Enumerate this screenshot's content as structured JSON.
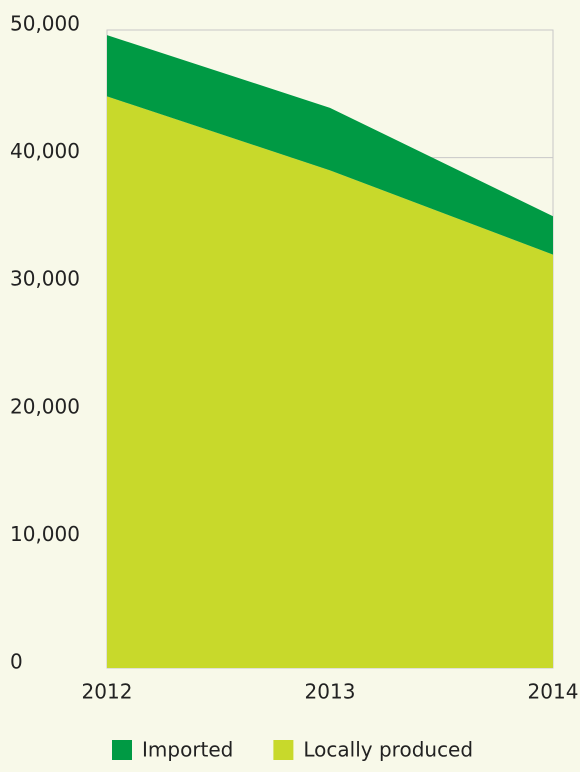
{
  "chart_data": {
    "type": "stacked_area",
    "categories": [
      "2012",
      "2013",
      "2014"
    ],
    "series": [
      {
        "name": "Locally produced",
        "color": "#c8d92b",
        "values": [
          44800,
          39000,
          32400
        ]
      },
      {
        "name": "Imported",
        "color": "#009a44",
        "values": [
          4800,
          4900,
          3000
        ]
      }
    ],
    "ylim": [
      0,
      50000
    ],
    "yticks": [
      0,
      {
        "value": 10000,
        "label": "10,000"
      },
      {
        "value": 20000,
        "label": "20,000"
      },
      {
        "value": 30000,
        "label": "30,000"
      },
      {
        "value": 40000,
        "label": "40,000"
      },
      {
        "value": 50000,
        "label": "50,000"
      }
    ],
    "grid": true,
    "legend": "bottom"
  }
}
